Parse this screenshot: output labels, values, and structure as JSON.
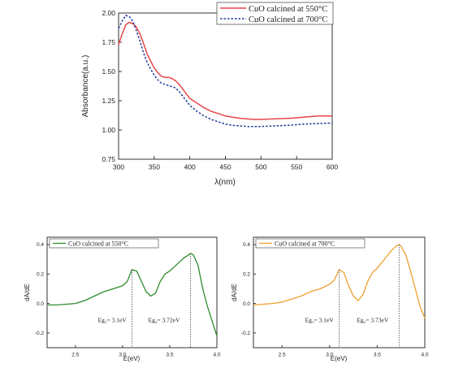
{
  "chart_data": [
    {
      "type": "line",
      "xlabel": "λ(nm)",
      "ylabel": "Absorbance(a.u.)",
      "xlim": [
        300,
        600
      ],
      "ylim": [
        0.75,
        2.0
      ],
      "xticks": [
        "300",
        "350",
        "400",
        "450",
        "500",
        "550",
        "600"
      ],
      "yticks": [
        "0.75",
        "1.00",
        "1.25",
        "1.50",
        "1.75",
        "2.00"
      ],
      "legend_position": "top-right",
      "series": [
        {
          "name": "CuO calcined at 550°C",
          "color": "#e8454a",
          "style": "solid",
          "x": [
            300,
            305,
            310,
            315,
            320,
            325,
            330,
            335,
            340,
            345,
            350,
            355,
            360,
            365,
            370,
            375,
            380,
            385,
            390,
            395,
            400,
            410,
            420,
            430,
            440,
            450,
            460,
            470,
            480,
            490,
            500,
            520,
            540,
            560,
            580,
            600
          ],
          "y": [
            1.73,
            1.82,
            1.9,
            1.92,
            1.91,
            1.88,
            1.82,
            1.74,
            1.65,
            1.59,
            1.53,
            1.49,
            1.46,
            1.45,
            1.45,
            1.44,
            1.42,
            1.39,
            1.35,
            1.31,
            1.27,
            1.23,
            1.19,
            1.16,
            1.14,
            1.12,
            1.11,
            1.1,
            1.095,
            1.09,
            1.09,
            1.095,
            1.1,
            1.11,
            1.12,
            1.12
          ]
        },
        {
          "name": "CuO calcined at 700°C",
          "color": "#1f3c9a",
          "style": "dotted",
          "x": [
            300,
            305,
            310,
            315,
            320,
            325,
            330,
            335,
            340,
            345,
            350,
            355,
            360,
            365,
            370,
            375,
            380,
            385,
            390,
            395,
            400,
            410,
            420,
            430,
            440,
            450,
            460,
            470,
            480,
            490,
            500,
            520,
            540,
            560,
            580,
            600
          ],
          "y": [
            1.87,
            1.93,
            1.98,
            1.97,
            1.93,
            1.85,
            1.76,
            1.66,
            1.58,
            1.52,
            1.47,
            1.43,
            1.4,
            1.39,
            1.38,
            1.37,
            1.36,
            1.33,
            1.29,
            1.25,
            1.21,
            1.16,
            1.12,
            1.09,
            1.07,
            1.05,
            1.04,
            1.035,
            1.03,
            1.03,
            1.03,
            1.035,
            1.04,
            1.05,
            1.055,
            1.06
          ]
        }
      ]
    },
    {
      "type": "line",
      "xlabel": "E(eV)",
      "ylabel": "dA/dE",
      "xlim": [
        2.2,
        4.0
      ],
      "ylim": [
        -0.3,
        0.45
      ],
      "xticks": [
        "2.5",
        "3.0",
        "3.5",
        "4.0"
      ],
      "yticks": [
        "-0.2",
        "0.0",
        "0.2",
        "0.4"
      ],
      "legend_position": "top-left",
      "series": [
        {
          "name": "CuO calcined at 550°C",
          "color": "#2e8b2e",
          "x": [
            2.2,
            2.3,
            2.4,
            2.5,
            2.6,
            2.7,
            2.8,
            2.9,
            3.0,
            3.05,
            3.1,
            3.15,
            3.2,
            3.25,
            3.3,
            3.35,
            3.4,
            3.45,
            3.5,
            3.55,
            3.6,
            3.65,
            3.7,
            3.72,
            3.75,
            3.8,
            3.85,
            3.9,
            3.95,
            4.0
          ],
          "y": [
            -0.01,
            -0.01,
            -0.005,
            0.0,
            0.02,
            0.05,
            0.08,
            0.1,
            0.12,
            0.15,
            0.23,
            0.22,
            0.15,
            0.08,
            0.05,
            0.07,
            0.15,
            0.2,
            0.22,
            0.25,
            0.28,
            0.31,
            0.33,
            0.34,
            0.33,
            0.26,
            0.1,
            -0.02,
            -0.12,
            -0.22
          ]
        }
      ],
      "vlines": [
        3.1,
        3.72
      ],
      "annotations": [
        "Eg₁= 3.1eV",
        "Eg₂= 3.72eV"
      ]
    },
    {
      "type": "line",
      "xlabel": "E(eV)",
      "ylabel": "dA/dE",
      "xlim": [
        2.2,
        4.0
      ],
      "ylim": [
        -0.3,
        0.45
      ],
      "xticks": [
        "2.5",
        "3.0",
        "3.5",
        "4.0"
      ],
      "yticks": [
        "-0.2",
        "0.0",
        "0.2",
        "0.4"
      ],
      "legend_position": "top-left",
      "series": [
        {
          "name": "CuO calcined at 700°C",
          "color": "#f0a030",
          "x": [
            2.2,
            2.3,
            2.4,
            2.5,
            2.6,
            2.7,
            2.8,
            2.9,
            3.0,
            3.05,
            3.1,
            3.15,
            3.2,
            3.25,
            3.3,
            3.35,
            3.4,
            3.45,
            3.5,
            3.55,
            3.6,
            3.65,
            3.7,
            3.73,
            3.75,
            3.8,
            3.85,
            3.9,
            3.95,
            4.0
          ],
          "y": [
            -0.01,
            -0.005,
            0.0,
            0.01,
            0.03,
            0.05,
            0.08,
            0.1,
            0.13,
            0.16,
            0.23,
            0.21,
            0.12,
            0.05,
            0.02,
            0.06,
            0.15,
            0.21,
            0.24,
            0.28,
            0.32,
            0.36,
            0.39,
            0.4,
            0.39,
            0.33,
            0.22,
            0.1,
            -0.02,
            -0.1
          ]
        }
      ],
      "vlines": [
        3.1,
        3.73
      ],
      "annotations": [
        "Eg₁= 3.1eV",
        "Eg₂= 3.73eV"
      ]
    }
  ]
}
